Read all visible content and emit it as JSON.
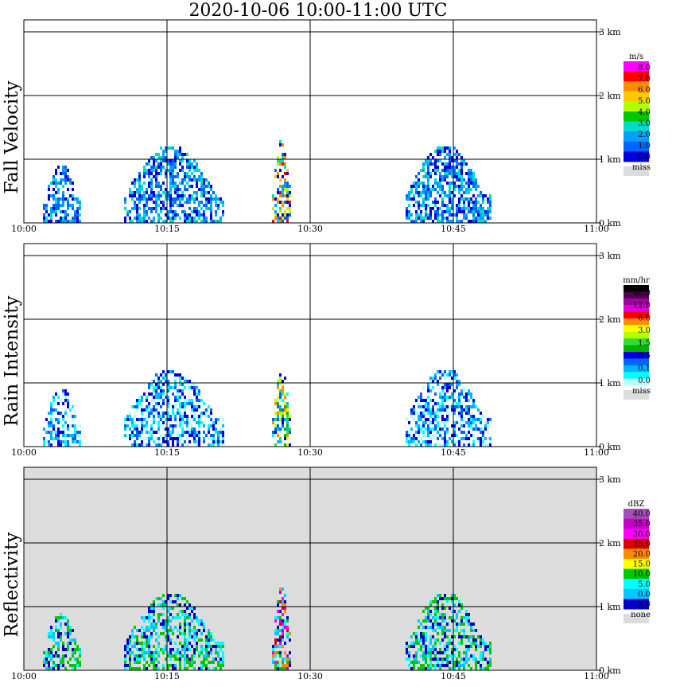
{
  "title": "2020-10-06   10:00-11:00 UTC",
  "time_ticks": [
    "10:00",
    "10:15",
    "10:30",
    "10:45",
    "11:00"
  ],
  "height_ticks": [
    "0 km",
    "1 km",
    "2 km",
    "3 km"
  ],
  "chart_data": [
    {
      "type": "heatmap",
      "ylabel": "Fall Velocity",
      "colorbar_unit": "m/s",
      "colorbar_labels": [
        "8.0",
        "7.0",
        "6.0",
        "5.0",
        "4.0",
        "3.0",
        "2.0",
        "1.0",
        "0.0"
      ],
      "colorbar_colors": [
        "#ff00ff",
        "#ff0000",
        "#ff8c00",
        "#ffc800",
        "#b4ff00",
        "#00c800",
        "#00dcc8",
        "#00a0ff",
        "#0064ff",
        "#0000dc"
      ],
      "missing_label": "miss",
      "missing_color": "#dcdcdc",
      "background": "#ffffff",
      "xlim": [
        "10:00",
        "11:00"
      ],
      "ylim_km": [
        0,
        3.0
      ],
      "echoes": [
        {
          "t": [
            2.0,
            6.0
          ],
          "top_km": 0.9,
          "value_m_s": "1.0-4.0"
        },
        {
          "t": [
            10.5,
            21.0
          ],
          "top_km": 1.2,
          "value_m_s": "0.0-3.0"
        },
        {
          "t": [
            26.0,
            28.0
          ],
          "top_km": 1.3,
          "value_m_s": "2.0-6.0"
        },
        {
          "t": [
            40.0,
            49.0
          ],
          "top_km": 1.2,
          "value_m_s": "1.0-4.0"
        }
      ]
    },
    {
      "type": "heatmap",
      "ylabel": "Rain Intensity",
      "colorbar_unit": "mm/hr",
      "colorbar_labels": [
        "48.0",
        "12.0",
        "6.0",
        "3.0",
        "1.5",
        "0.5",
        "0.1",
        "0.0"
      ],
      "colorbar_colors": [
        "#000000",
        "#500050",
        "#a000a0",
        "#dc00dc",
        "#ff0000",
        "#ff8c00",
        "#ffff00",
        "#b4ff00",
        "#32dc32",
        "#00b400",
        "#0000dc",
        "#0064ff",
        "#00b4ff",
        "#00ffff",
        "#b4ffff"
      ],
      "missing_label": "miss",
      "missing_color": "#dcdcdc",
      "background": "#ffffff",
      "xlim": [
        "10:00",
        "11:00"
      ],
      "ylim_km": [
        0,
        3.0
      ],
      "echoes": [
        {
          "t": [
            2.0,
            6.0
          ],
          "top_km": 0.9,
          "value_mm_hr": "0.1-0.5"
        },
        {
          "t": [
            10.5,
            21.0
          ],
          "top_km": 1.2,
          "value_mm_hr": "0.0-0.5"
        },
        {
          "t": [
            26.0,
            28.0
          ],
          "top_km": 1.2,
          "value_mm_hr": "0.5-6.0"
        },
        {
          "t": [
            40.0,
            49.0
          ],
          "top_km": 1.2,
          "value_mm_hr": "0.1-3.0"
        }
      ]
    },
    {
      "type": "heatmap",
      "ylabel": "Reflectivity",
      "colorbar_unit": "dBZ",
      "colorbar_labels": [
        "40.0",
        "35.0",
        "30.0",
        "25.0",
        "20.0",
        "15.0",
        "10.0",
        "5.0",
        "0.0",
        "-5.0"
      ],
      "colorbar_colors": [
        "#a050b4",
        "#c800c8",
        "#ff00ff",
        "#dc0000",
        "#ff8c00",
        "#ffff00",
        "#00c800",
        "#00ffff",
        "#00c8ff",
        "#0000c8"
      ],
      "missing_label": "none",
      "missing_color": "#dcdcdc",
      "background": "#dcdcdc",
      "xlim": [
        "10:00",
        "11:00"
      ],
      "ylim_km": [
        0,
        3.0
      ],
      "echoes": [
        {
          "t": [
            2.0,
            6.0
          ],
          "top_km": 0.9,
          "value_dbz": "5.0-15.0"
        },
        {
          "t": [
            10.5,
            21.0
          ],
          "top_km": 1.2,
          "value_dbz": "0.0-15.0"
        },
        {
          "t": [
            26.0,
            28.0
          ],
          "top_km": 1.3,
          "value_dbz": "5.0-30.0"
        },
        {
          "t": [
            40.0,
            49.0
          ],
          "top_km": 1.2,
          "value_dbz": "0.0-20.0"
        }
      ]
    }
  ]
}
